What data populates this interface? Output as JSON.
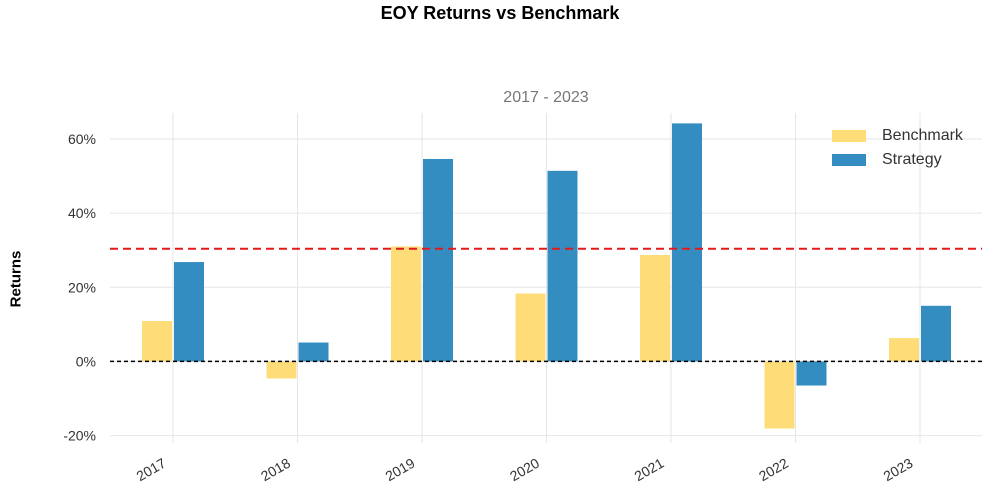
{
  "chart_data": {
    "type": "bar",
    "title": "EOY Returns  vs Benchmark",
    "subtitle": "2017 - 2023",
    "ylabel": "Returns",
    "categories": [
      "2017",
      "2018",
      "2019",
      "2020",
      "2021",
      "2022",
      "2023"
    ],
    "series": [
      {
        "name": "Benchmark",
        "color": "#fedd78",
        "values": [
          10.9,
          -4.6,
          31.0,
          18.3,
          28.7,
          -18.1,
          6.3
        ]
      },
      {
        "name": "Strategy",
        "color": "#348dc1",
        "values": [
          26.8,
          5.1,
          54.6,
          51.4,
          64.2,
          -6.5,
          15.0
        ]
      }
    ],
    "yticks": [
      -20,
      0,
      20,
      40,
      60
    ],
    "ytick_labels": [
      "-20%",
      "0%",
      "20%",
      "40%",
      "60%"
    ],
    "ylim": [
      -22,
      67
    ],
    "reference_lines": [
      {
        "value": 30.4,
        "color": "#e31a1c",
        "style": "dashed"
      },
      {
        "value": 0,
        "color": "#000000",
        "style": "dashed"
      }
    ],
    "grid": true,
    "legend_position": "top-right"
  }
}
